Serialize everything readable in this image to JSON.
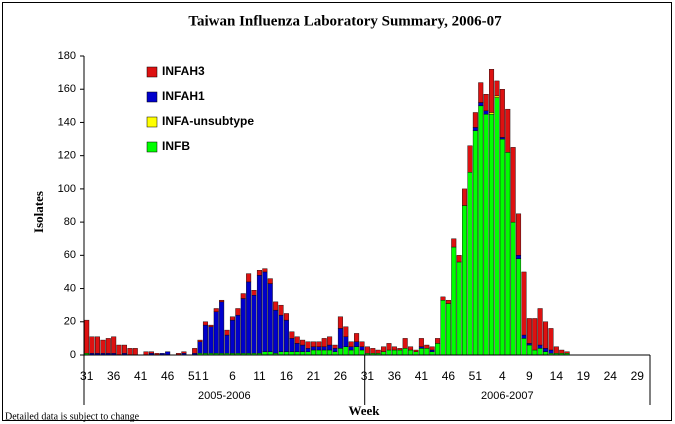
{
  "chart_data": {
    "type": "stacked_bar",
    "title": "Taiwan Influenza Laboratory Summary, 2006-07",
    "y_label": "Isolates",
    "x_label": "Week",
    "note": "Detailed data is subject to change",
    "x_groups": [
      "2005-2006",
      "2006-2007"
    ],
    "categories": [
      "31",
      null,
      null,
      null,
      null,
      "36",
      null,
      null,
      null,
      null,
      "41",
      null,
      null,
      null,
      null,
      "46",
      null,
      null,
      null,
      null,
      "51",
      null,
      "1",
      null,
      null,
      null,
      null,
      "6",
      null,
      null,
      null,
      null,
      "11",
      null,
      null,
      null,
      null,
      "16",
      null,
      null,
      null,
      null,
      "21",
      null,
      null,
      null,
      null,
      "26",
      null,
      null,
      null,
      null,
      "31",
      null,
      null,
      null,
      null,
      "36",
      null,
      null,
      null,
      null,
      "41",
      null,
      null,
      null,
      null,
      "46",
      null,
      null,
      null,
      null,
      "51",
      null,
      null,
      null,
      null,
      "4",
      null,
      null,
      null,
      null,
      "9",
      null,
      null,
      null,
      null,
      "14",
      null,
      null,
      null,
      null,
      "19",
      null,
      null,
      null,
      null,
      "24",
      null,
      null,
      null,
      null,
      "29"
    ],
    "series": [
      {
        "name": "INFB",
        "color": "#00ff00",
        "values": [
          1,
          0,
          0,
          0,
          0,
          0,
          0,
          0,
          0,
          0,
          0,
          0,
          0,
          0,
          0,
          0,
          0,
          0,
          0,
          0,
          0,
          1,
          1,
          1,
          1,
          1,
          1,
          1,
          1,
          1,
          1,
          1,
          1,
          2,
          2,
          1,
          2,
          2,
          2,
          2,
          2,
          2,
          3,
          3,
          3,
          3,
          2,
          4,
          5,
          3,
          5,
          3,
          1,
          1,
          1,
          2,
          3,
          3,
          3,
          4,
          3,
          2,
          4,
          4,
          2,
          7,
          33,
          31,
          65,
          56,
          90,
          110,
          135,
          150,
          145,
          145,
          155,
          130,
          122,
          80,
          58,
          10,
          6,
          3,
          4,
          2,
          1,
          1,
          1,
          1,
          0,
          0,
          0,
          0,
          0,
          0,
          0,
          0,
          0,
          0,
          0,
          0,
          0
        ]
      },
      {
        "name": "INFA-unsubtype",
        "color": "#ffff00",
        "values": [
          0,
          0,
          0,
          0,
          0,
          0,
          0,
          0,
          0,
          0,
          0,
          0,
          0,
          0,
          0,
          0,
          0,
          0,
          0,
          0,
          0,
          0,
          0,
          0,
          0,
          0,
          0,
          0,
          0,
          0,
          0,
          0,
          0,
          0,
          0,
          0,
          0,
          0,
          0,
          0,
          0,
          0,
          0,
          0,
          0,
          0,
          0,
          0,
          0,
          0,
          0,
          0,
          0,
          0,
          0,
          0,
          0,
          0,
          0,
          0,
          0,
          0,
          0,
          0,
          0,
          0,
          0,
          0,
          0,
          0,
          0,
          0,
          0,
          0,
          0,
          1,
          1,
          0,
          0,
          0,
          0,
          0,
          0,
          0,
          0,
          0,
          0,
          0,
          0,
          0,
          0,
          0,
          0,
          0,
          0,
          0,
          0,
          0,
          0,
          0,
          0,
          0,
          0
        ]
      },
      {
        "name": "INFAH1",
        "color": "#0000cc",
        "values": [
          0,
          1,
          1,
          1,
          1,
          1,
          0,
          1,
          0,
          0,
          0,
          0,
          1,
          0,
          1,
          2,
          0,
          0,
          1,
          0,
          1,
          7,
          17,
          16,
          25,
          31,
          11,
          20,
          23,
          33,
          43,
          35,
          47,
          48,
          41,
          26,
          22,
          19,
          8,
          5,
          4,
          2,
          2,
          2,
          2,
          3,
          2,
          12,
          6,
          2,
          3,
          2,
          0,
          0,
          0,
          0,
          0,
          0,
          0,
          0,
          0,
          0,
          1,
          0,
          1,
          0,
          0,
          0,
          0,
          0,
          0,
          0,
          2,
          2,
          2,
          0,
          0,
          1,
          0,
          0,
          2,
          2,
          1,
          0,
          2,
          2,
          2,
          0,
          0,
          0,
          0,
          0,
          0,
          0,
          0,
          0,
          0,
          0,
          0,
          0,
          0,
          0,
          0
        ]
      },
      {
        "name": "INFAH3",
        "color": "#dd1111",
        "values": [
          20,
          10,
          10,
          8,
          9,
          10,
          6,
          5,
          4,
          4,
          0,
          2,
          1,
          1,
          0,
          0,
          0,
          1,
          1,
          0,
          3,
          1,
          2,
          1,
          2,
          1,
          3,
          2,
          4,
          3,
          5,
          3,
          3,
          2,
          3,
          5,
          6,
          4,
          4,
          4,
          3,
          4,
          3,
          3,
          5,
          5,
          2,
          7,
          6,
          3,
          5,
          3,
          4,
          3,
          2,
          3,
          4,
          2,
          1,
          6,
          2,
          1,
          5,
          2,
          2,
          3,
          2,
          2,
          5,
          4,
          10,
          16,
          9,
          12,
          10,
          26,
          9,
          29,
          26,
          45,
          25,
          38,
          15,
          19,
          22,
          16,
          13,
          4,
          2,
          1,
          0,
          0,
          0,
          0,
          0,
          0,
          0,
          0,
          0,
          0,
          0,
          0,
          0
        ]
      }
    ],
    "legend_order": [
      "INFAH3",
      "INFAH1",
      "INFA-unsubtype",
      "INFB"
    ],
    "ylim": [
      0,
      180
    ],
    "yticks": [
      0,
      20,
      40,
      60,
      80,
      100,
      120,
      140,
      160,
      180
    ]
  }
}
